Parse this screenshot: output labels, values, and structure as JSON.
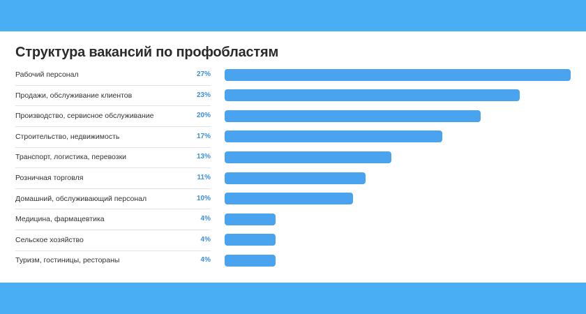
{
  "chart_data": {
    "type": "bar",
    "title": "Структура вакансий по профобластям",
    "categories": [
      "Рабочий персонал",
      "Продажи, обслуживание клиентов",
      "Производство, сервисное обслуживание",
      "Строительство, недвижимость",
      "Транспорт, логистика, перевозки",
      "Розничная торговля",
      "Домашний, обслуживающий персонал",
      "Медицина, фармацевтика",
      "Сельское хозяйство",
      "Туризм, гостиницы, рестораны"
    ],
    "values": [
      27,
      23,
      20,
      17,
      13,
      11,
      10,
      4,
      4,
      4
    ],
    "value_labels": [
      "27%",
      "23%",
      "20%",
      "17%",
      "13%",
      "11%",
      "10%",
      "4%",
      "4%",
      "4%"
    ],
    "xlim": [
      0,
      27
    ],
    "grid": false,
    "orientation": "horizontal",
    "bar_color": "#4aa3ef",
    "value_color": "#3a8fd8"
  },
  "colors": {
    "band": "#4aaef5"
  }
}
